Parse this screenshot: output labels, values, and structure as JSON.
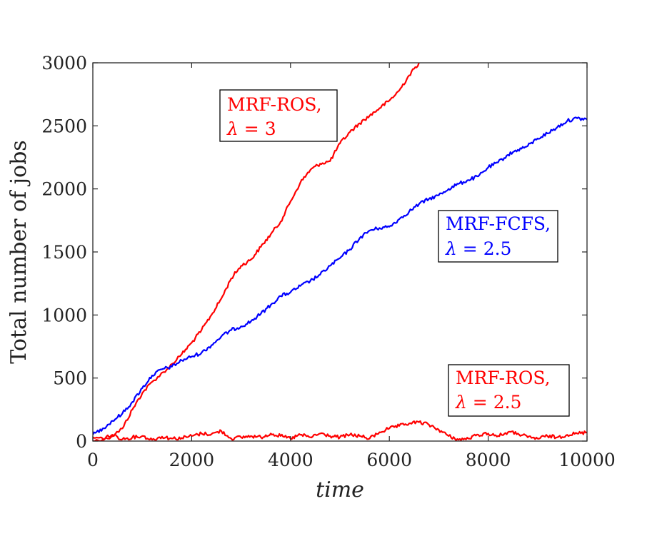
{
  "chart_data": {
    "type": "line",
    "xlabel": "time",
    "ylabel": "Total number of jobs",
    "xlim": [
      0,
      10000
    ],
    "ylim": [
      0,
      3000
    ],
    "xticks": [
      0,
      2000,
      4000,
      6000,
      8000,
      10000
    ],
    "yticks": [
      0,
      500,
      1000,
      1500,
      2000,
      2500,
      3000
    ],
    "xtick_labels": [
      "0",
      "2000",
      "4000",
      "6000",
      "8000",
      "10000"
    ],
    "ytick_labels": [
      "0",
      "500",
      "1000",
      "1500",
      "2000",
      "2500",
      "3000"
    ],
    "grid": false,
    "legend": "none",
    "series": [
      {
        "color": "#ff0000",
        "x": [
          0,
          300,
          600,
          800,
          1000,
          1200,
          1500,
          1800,
          2000,
          2200,
          2400,
          2600,
          2800,
          3000,
          3200,
          3400,
          3600,
          3800,
          4000,
          4200,
          4400,
          4600,
          4800,
          5000,
          5200,
          5400,
          5600,
          5800,
          6000,
          6200,
          6400,
          6600
        ],
        "y": [
          0,
          20,
          100,
          250,
          380,
          470,
          570,
          690,
          780,
          880,
          1000,
          1130,
          1290,
          1390,
          1440,
          1540,
          1640,
          1740,
          1900,
          2050,
          2150,
          2200,
          2220,
          2360,
          2450,
          2520,
          2580,
          2640,
          2700,
          2780,
          2900,
          3000
        ]
      },
      {
        "color": "#0000ff",
        "x": [
          0,
          200,
          400,
          600,
          800,
          1000,
          1200,
          1400,
          1600,
          1800,
          2000,
          2200,
          2400,
          2600,
          2800,
          3000,
          3200,
          3400,
          3600,
          3800,
          4000,
          4200,
          4400,
          4600,
          4800,
          5000,
          5200,
          5400,
          5600,
          5800,
          6000,
          6200,
          6400,
          6600,
          6800,
          7000,
          7200,
          7400,
          7600,
          7800,
          8000,
          8200,
          8400,
          8600,
          8800,
          9000,
          9200,
          9400,
          9600,
          9800,
          10000
        ],
        "y": [
          50,
          100,
          160,
          220,
          310,
          420,
          520,
          570,
          590,
          640,
          670,
          700,
          760,
          830,
          880,
          910,
          950,
          1010,
          1080,
          1150,
          1180,
          1230,
          1270,
          1320,
          1390,
          1450,
          1520,
          1610,
          1670,
          1690,
          1700,
          1760,
          1820,
          1880,
          1920,
          1950,
          2000,
          2040,
          2070,
          2100,
          2170,
          2210,
          2270,
          2310,
          2340,
          2400,
          2440,
          2490,
          2540,
          2560,
          2550
        ]
      },
      {
        "color": "#ff0000",
        "x": [
          0,
          200,
          400,
          600,
          800,
          1000,
          1200,
          1400,
          1600,
          1800,
          2000,
          2200,
          2400,
          2600,
          2800,
          3000,
          3200,
          3400,
          3600,
          3800,
          4000,
          4200,
          4400,
          4600,
          4800,
          5000,
          5200,
          5400,
          5600,
          5800,
          6000,
          6200,
          6400,
          6600,
          6800,
          7000,
          7200,
          7400,
          7600,
          7800,
          8000,
          8200,
          8400,
          8600,
          8800,
          9000,
          9200,
          9400,
          9600,
          9800,
          10000
        ],
        "y": [
          30,
          20,
          50,
          15,
          30,
          40,
          10,
          35,
          20,
          25,
          40,
          60,
          55,
          80,
          20,
          30,
          40,
          30,
          60,
          40,
          20,
          50,
          30,
          60,
          40,
          30,
          50,
          40,
          20,
          70,
          100,
          120,
          140,
          150,
          130,
          90,
          40,
          10,
          20,
          50,
          60,
          40,
          70,
          60,
          30,
          20,
          40,
          30,
          50,
          60,
          70
        ]
      }
    ],
    "annotations": [
      {
        "line1": "MRF-ROS,",
        "lambda": "λ",
        "eq": " = 3",
        "color": "#ff0000"
      },
      {
        "line1": "MRF-FCFS,",
        "lambda": "λ",
        "eq": " = 2.5",
        "color": "#0000ff"
      },
      {
        "line1": "MRF-ROS,",
        "lambda": "λ",
        "eq": " = 2.5",
        "color": "#ff0000"
      }
    ]
  }
}
